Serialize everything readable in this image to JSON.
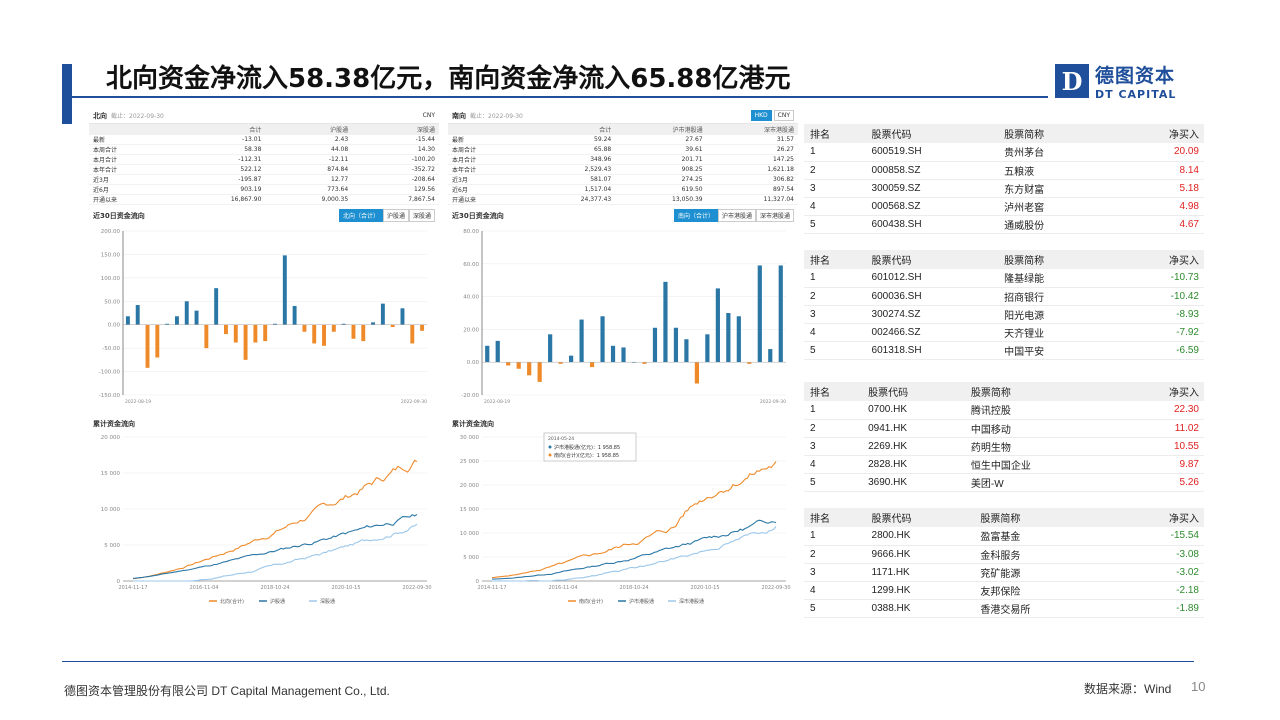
{
  "title": "北向资金净流入58.38亿元，南向资金净流入65.88亿港元",
  "logo": {
    "mark": "D",
    "cn": "德图资本",
    "en": "DT CAPITAL"
  },
  "north": {
    "title": "北向",
    "date": "截止：2022-09-30",
    "currency": "CNY",
    "headers": [
      "",
      "合计",
      "沪股通",
      "深股通"
    ],
    "rows": [
      [
        "最新",
        "-13.01",
        "2.43",
        "-15.44"
      ],
      [
        "本周合计",
        "58.38",
        "44.08",
        "14.30"
      ],
      [
        "本月合计",
        "-112.31",
        "-12.11",
        "-100.20"
      ],
      [
        "本年合计",
        "522.12",
        "874.84",
        "-352.72"
      ],
      [
        "近3月",
        "-195.87",
        "12.77",
        "-208.64"
      ],
      [
        "近6月",
        "903.19",
        "773.64",
        "129.56"
      ],
      [
        "开通以来",
        "16,867.90",
        "9,000.35",
        "7,867.54"
      ]
    ],
    "bar_title": "近30日资金流向",
    "bar_tabs": [
      "北向（合计）",
      "沪股通",
      "深股通"
    ],
    "cum_title": "累计资金流向"
  },
  "south": {
    "title": "南向",
    "date": "截止：2022-09-30",
    "currency_options": [
      "HKD",
      "CNY"
    ],
    "headers": [
      "",
      "合计",
      "沪市港股通",
      "深市港股通"
    ],
    "rows": [
      [
        "最新",
        "59.24",
        "27.67",
        "31.57"
      ],
      [
        "本周合计",
        "65.88",
        "39.61",
        "26.27"
      ],
      [
        "本月合计",
        "348.96",
        "201.71",
        "147.25"
      ],
      [
        "本年合计",
        "2,529.43",
        "908.25",
        "1,621.18"
      ],
      [
        "近3月",
        "581.07",
        "274.25",
        "306.82"
      ],
      [
        "近6月",
        "1,517.04",
        "619.50",
        "897.54"
      ],
      [
        "开通以来",
        "24,377.43",
        "13,050.39",
        "11,327.04"
      ]
    ],
    "bar_title": "近30日资金流向",
    "bar_tabs": [
      "南向（合计）",
      "沪市港股通",
      "深市港股通"
    ],
    "cum_title": "累计资金流向",
    "tooltip": {
      "date": "2014-05-24",
      "line1": "沪市港股通(亿元)：1 958.85",
      "line2": "南向(合计)(亿元)：1 958.85"
    }
  },
  "chart_data": [
    {
      "type": "bar",
      "title": "近30日资金流向",
      "ylim": [
        -150,
        200
      ],
      "yticks": [
        "200.00",
        "150.00",
        "100.00",
        "50.00",
        "0.00",
        "-50.00",
        "-100.00",
        "-150.00"
      ],
      "x_start": "2022-08-19",
      "x_end": "2022-09-30",
      "values": [
        18,
        42,
        -92,
        -70,
        2,
        18,
        50,
        30,
        -50,
        78,
        -20,
        -38,
        -75,
        -38,
        -35,
        2,
        148,
        40,
        -15,
        -40,
        -45,
        -15,
        2,
        -30,
        -35,
        5,
        45,
        -5,
        35,
        -40,
        -13
      ]
    },
    {
      "type": "bar",
      "title": "近30日资金流向",
      "ylim": [
        -20,
        80
      ],
      "yticks": [
        "80.00",
        "60.00",
        "40.00",
        "20.00",
        "0.00",
        "-20.00"
      ],
      "x_start": "2022-08-19",
      "x_end": "2022-09-30",
      "values": [
        10,
        13,
        -2,
        -4,
        -8,
        -12,
        17,
        -1,
        4,
        26,
        -3,
        28,
        10,
        9,
        0,
        -1,
        21,
        49,
        21,
        14,
        -13,
        17,
        45,
        30,
        28,
        -1,
        59,
        8,
        59
      ]
    },
    {
      "type": "line",
      "title": "累计资金流向",
      "yticks": [
        "20 000",
        "15 000",
        "10 000",
        "5 000",
        "0"
      ],
      "xticks": [
        "2014-11-17",
        "2016-11-04",
        "2018-10-24",
        "2020-10-15",
        "2022-09-30"
      ],
      "series": [
        {
          "name": "北向(合计)"
        },
        {
          "name": "沪股通"
        },
        {
          "name": "深股通"
        }
      ]
    },
    {
      "type": "line",
      "title": "累计资金流向",
      "yticks": [
        "30 000",
        "25 000",
        "20 000",
        "15 000",
        "10 000",
        "5 000",
        "0"
      ],
      "xticks": [
        "2014-11-17",
        "2016-11-04",
        "2018-10-24",
        "2020-10-15",
        "2022-09-30"
      ],
      "series": [
        {
          "name": "南向(合计)"
        },
        {
          "name": "沪市港股通"
        },
        {
          "name": "深市港股通"
        }
      ]
    }
  ],
  "tables": [
    {
      "headers": [
        "排名",
        "股票代码",
        "股票简称",
        "净买入"
      ],
      "rows": [
        [
          "1",
          "600519.SH",
          "贵州茅台",
          "20.09"
        ],
        [
          "2",
          "000858.SZ",
          "五粮液",
          "8.14"
        ],
        [
          "3",
          "300059.SZ",
          "东方财富",
          "5.18"
        ],
        [
          "4",
          "000568.SZ",
          "泸州老窖",
          "4.98"
        ],
        [
          "5",
          "600438.SH",
          "通威股份",
          "4.67"
        ]
      ]
    },
    {
      "headers": [
        "排名",
        "股票代码",
        "股票简称",
        "净买入"
      ],
      "rows": [
        [
          "1",
          "601012.SH",
          "隆基绿能",
          "-10.73"
        ],
        [
          "2",
          "600036.SH",
          "招商银行",
          "-10.42"
        ],
        [
          "3",
          "300274.SZ",
          "阳光电源",
          "-8.93"
        ],
        [
          "4",
          "002466.SZ",
          "天齐锂业",
          "-7.92"
        ],
        [
          "5",
          "601318.SH",
          "中国平安",
          "-6.59"
        ]
      ]
    },
    {
      "headers": [
        "排名",
        "股票代码",
        "股票简称",
        "净买入"
      ],
      "rows": [
        [
          "1",
          "0700.HK",
          "腾讯控股",
          "22.30"
        ],
        [
          "2",
          "0941.HK",
          "中国移动",
          "11.02"
        ],
        [
          "3",
          "2269.HK",
          "药明生物",
          "10.55"
        ],
        [
          "4",
          "2828.HK",
          "恒生中国企业",
          "9.87"
        ],
        [
          "5",
          "3690.HK",
          "美团-W",
          "5.26"
        ]
      ]
    },
    {
      "headers": [
        "排名",
        "股票代码",
        "股票简称",
        "净买入"
      ],
      "rows": [
        [
          "1",
          "2800.HK",
          "盈富基金",
          "-15.54"
        ],
        [
          "2",
          "9666.HK",
          "金科服务",
          "-3.08"
        ],
        [
          "3",
          "1171.HK",
          "兖矿能源",
          "-3.02"
        ],
        [
          "4",
          "1299.HK",
          "友邦保险",
          "-2.18"
        ],
        [
          "5",
          "0388.HK",
          "香港交易所",
          "-1.89"
        ]
      ]
    }
  ],
  "footer": {
    "company": "德图资本管理股份有限公司  DT Capital Management Co., Ltd.",
    "source": "数据来源：Wind",
    "page": "10"
  },
  "colors": {
    "brand": "#1f4e9a",
    "bar_pos": "#2a77a6",
    "bar_neg": "#ef8a2a",
    "line1": "#ef8a2a",
    "line2": "#2a77a6",
    "line3": "#9cc7ea",
    "up": "#e02020",
    "down": "#2d8a2d"
  }
}
